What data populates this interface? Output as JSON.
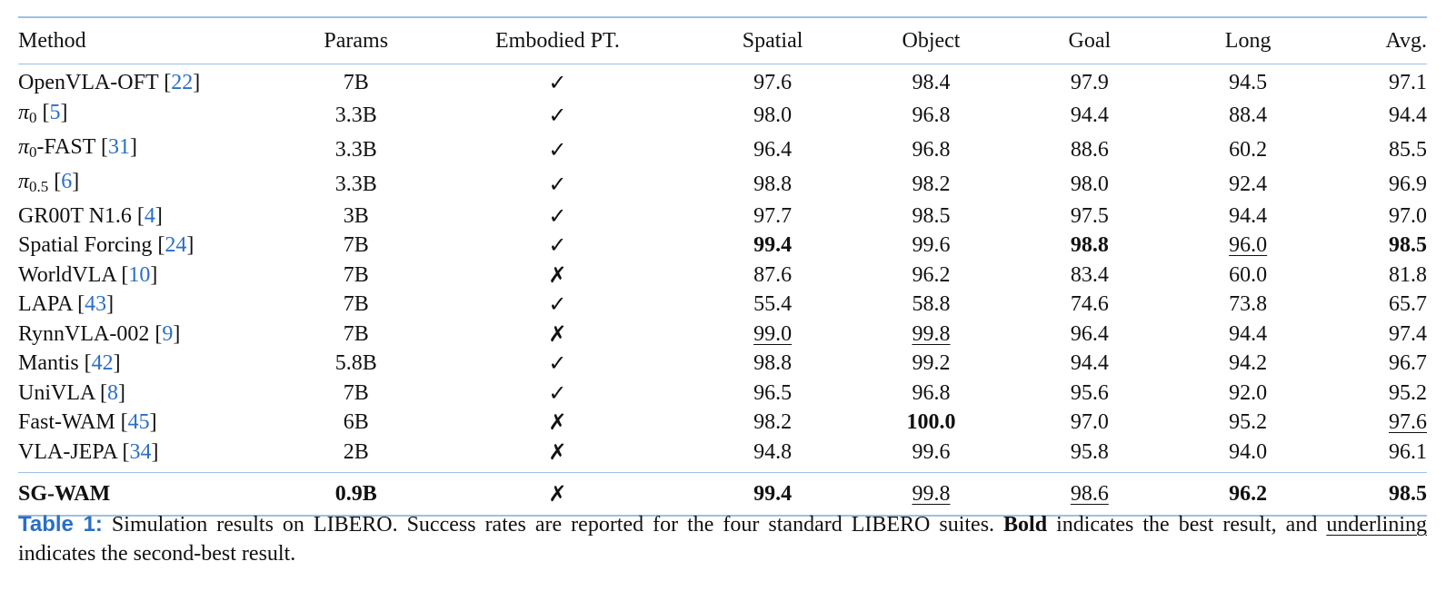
{
  "table": {
    "headers": {
      "method": "Method",
      "params": "Params",
      "embodied": "Embodied PT.",
      "spatial": "Spatial",
      "object": "Object",
      "goal": "Goal",
      "long": "Long",
      "avg": "Avg."
    },
    "rows": [
      {
        "name": "OpenVLA-OFT",
        "base": "",
        "sub": "",
        "suffix": "",
        "ref": "22",
        "params": "7B",
        "embodied": "✓",
        "spatial": "97.6",
        "object": "98.4",
        "goal": "97.9",
        "long": "94.5",
        "avg": "97.1"
      },
      {
        "name": "",
        "base": "π",
        "sub": "0",
        "suffix": "",
        "ref": "5",
        "params": "3.3B",
        "embodied": "✓",
        "spatial": "98.0",
        "object": "96.8",
        "goal": "94.4",
        "long": "88.4",
        "avg": "94.4"
      },
      {
        "name": "",
        "base": "π",
        "sub": "0",
        "suffix": "-FAST",
        "ref": "31",
        "params": "3.3B",
        "embodied": "✓",
        "spatial": "96.4",
        "object": "96.8",
        "goal": "88.6",
        "long": "60.2",
        "avg": "85.5"
      },
      {
        "name": "",
        "base": "π",
        "sub": "0.5",
        "suffix": "",
        "ref": "6",
        "params": "3.3B",
        "embodied": "✓",
        "spatial": "98.8",
        "object": "98.2",
        "goal": "98.0",
        "long": "92.4",
        "avg": "96.9"
      },
      {
        "name": "GR00T N1.6",
        "base": "",
        "sub": "",
        "suffix": "",
        "ref": "4",
        "params": "3B",
        "embodied": "✓",
        "spatial": "97.7",
        "object": "98.5",
        "goal": "97.5",
        "long": "94.4",
        "avg": "97.0"
      },
      {
        "name": "Spatial Forcing",
        "base": "",
        "sub": "",
        "suffix": "",
        "ref": "24",
        "params": "7B",
        "embodied": "✓",
        "spatial": "99.4",
        "object": "99.6",
        "goal": "98.8",
        "long": "96.0",
        "avg": "98.5"
      },
      {
        "name": "WorldVLA",
        "base": "",
        "sub": "",
        "suffix": "",
        "ref": "10",
        "params": "7B",
        "embodied": "✗",
        "spatial": "87.6",
        "object": "96.2",
        "goal": "83.4",
        "long": "60.0",
        "avg": "81.8"
      },
      {
        "name": "LAPA",
        "base": "",
        "sub": "",
        "suffix": "",
        "ref": "43",
        "params": "7B",
        "embodied": "✓",
        "spatial": "55.4",
        "object": "58.8",
        "goal": "74.6",
        "long": "73.8",
        "avg": "65.7"
      },
      {
        "name": "RynnVLA-002",
        "base": "",
        "sub": "",
        "suffix": "",
        "ref": "9",
        "params": "7B",
        "embodied": "✗",
        "spatial": "99.0",
        "object": "99.8",
        "goal": "96.4",
        "long": "94.4",
        "avg": "97.4"
      },
      {
        "name": "Mantis",
        "base": "",
        "sub": "",
        "suffix": "",
        "ref": "42",
        "params": "5.8B",
        "embodied": "✓",
        "spatial": "98.8",
        "object": "99.2",
        "goal": "94.4",
        "long": "94.2",
        "avg": "96.7"
      },
      {
        "name": "UniVLA",
        "base": "",
        "sub": "",
        "suffix": "",
        "ref": "8",
        "params": "7B",
        "embodied": "✓",
        "spatial": "96.5",
        "object": "96.8",
        "goal": "95.6",
        "long": "92.0",
        "avg": "95.2"
      },
      {
        "name": "Fast-WAM",
        "base": "",
        "sub": "",
        "suffix": "",
        "ref": "45",
        "params": "6B",
        "embodied": "✗",
        "spatial": "98.2",
        "object": "100.0",
        "goal": "97.0",
        "long": "95.2",
        "avg": "97.6"
      },
      {
        "name": "VLA-JEPA",
        "base": "",
        "sub": "",
        "suffix": "",
        "ref": "34",
        "params": "2B",
        "embodied": "✗",
        "spatial": "94.8",
        "object": "99.6",
        "goal": "95.8",
        "long": "94.0",
        "avg": "96.1"
      }
    ],
    "ours": {
      "name": "SG-WAM",
      "params": "0.9B",
      "embodied": "✗",
      "spatial": "99.4",
      "object": "99.8",
      "goal": "98.6",
      "long": "96.2",
      "avg": "98.5"
    }
  },
  "caption": {
    "label": "Table 1:",
    "text1": "Simulation results on LIBERO. Success rates are reported for the four standard LIBERO suites.",
    "bold_word": "Bold",
    "text2": "indicates the best result, and",
    "underline_word": "underlining",
    "text3": "indicates the second-best result."
  }
}
